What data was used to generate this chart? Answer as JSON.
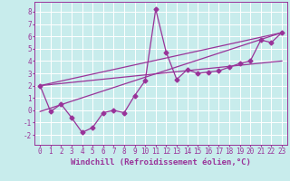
{
  "xlabel": "Windchill (Refroidissement éolien,°C)",
  "ylabel": "",
  "bg_color": "#c8ecec",
  "line_color": "#993399",
  "grid_color": "#ffffff",
  "xlim": [
    -0.5,
    23.5
  ],
  "ylim": [
    -2.8,
    8.8
  ],
  "xticks": [
    0,
    1,
    2,
    3,
    4,
    5,
    6,
    7,
    8,
    9,
    10,
    11,
    12,
    13,
    14,
    15,
    16,
    17,
    18,
    19,
    20,
    21,
    22,
    23
  ],
  "yticks": [
    -2,
    -1,
    0,
    1,
    2,
    3,
    4,
    5,
    6,
    7,
    8
  ],
  "x": [
    0,
    1,
    2,
    3,
    4,
    5,
    6,
    7,
    8,
    9,
    10,
    11,
    12,
    13,
    14,
    15,
    16,
    17,
    18,
    19,
    20,
    21,
    22,
    23
  ],
  "y": [
    2.0,
    -0.1,
    0.5,
    -0.6,
    -1.8,
    -1.4,
    -0.2,
    0.0,
    -0.2,
    1.2,
    2.4,
    8.2,
    4.7,
    2.5,
    3.3,
    3.0,
    3.1,
    3.2,
    3.5,
    3.8,
    4.0,
    5.7,
    5.5,
    6.3
  ],
  "line2_x": [
    0,
    23
  ],
  "line2_y": [
    2.0,
    6.3
  ],
  "line3_x": [
    0,
    23
  ],
  "line3_y": [
    -0.1,
    6.3
  ],
  "line4_x": [
    0,
    23
  ],
  "line4_y": [
    2.0,
    4.0
  ],
  "marker": "D",
  "markersize": 2.5,
  "linewidth": 0.9,
  "xlabel_fontsize": 6.5,
  "tick_fontsize": 5.5
}
